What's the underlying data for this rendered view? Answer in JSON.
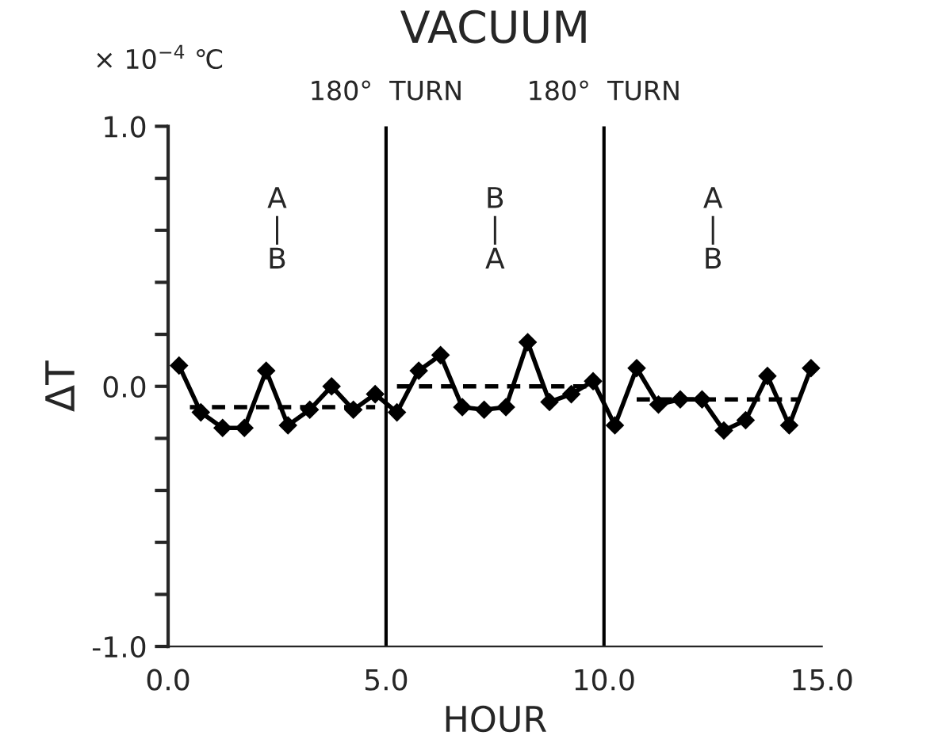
{
  "chart_data": {
    "type": "line",
    "title": "VACUUM",
    "xlabel": "HOUR",
    "ylabel": "ΔT",
    "x": [
      0.25,
      0.75,
      1.25,
      1.75,
      2.25,
      2.75,
      3.25,
      3.75,
      4.25,
      4.75,
      5.25,
      5.75,
      6.25,
      6.75,
      7.25,
      7.75,
      8.25,
      8.75,
      9.25,
      9.75,
      10.25,
      10.75,
      11.25,
      11.75,
      12.25,
      12.75,
      13.25,
      13.75,
      14.25,
      14.75
    ],
    "series": [
      {
        "color": "#000000",
        "marker": "diamond",
        "line_style": "solid",
        "values": [
          0.08,
          -0.1,
          -0.16,
          -0.16,
          0.06,
          -0.15,
          -0.09,
          0.0,
          -0.09,
          -0.03,
          -0.1,
          0.06,
          0.12,
          -0.08,
          -0.09,
          -0.08,
          0.17,
          -0.06,
          -0.03,
          0.02,
          -0.15,
          0.07,
          -0.07,
          -0.05,
          -0.05,
          -0.17,
          -0.13,
          0.04,
          -0.15,
          0.07
        ]
      },
      {
        "color": "#000000",
        "marker": "none",
        "line_style": "dashed",
        "x": [
          0.5,
          4.75
        ],
        "values": [
          -0.08,
          -0.08
        ]
      },
      {
        "color": "#000000",
        "marker": "none",
        "line_style": "dashed",
        "x": [
          5.25,
          9.75
        ],
        "values": [
          0.0,
          0.0
        ]
      },
      {
        "color": "#000000",
        "marker": "none",
        "line_style": "dashed",
        "x": [
          10.75,
          14.5
        ],
        "values": [
          -0.05,
          -0.05
        ]
      }
    ],
    "xlim": [
      0,
      15
    ],
    "xticks": [
      {
        "value": 0,
        "label": "0.0"
      },
      {
        "value": 5,
        "label": "5.0"
      },
      {
        "value": 10,
        "label": "10.0"
      },
      {
        "value": 15,
        "label": "15.0"
      }
    ],
    "ylim": [
      -1.0,
      1.0
    ],
    "yticks": [
      {
        "value": -1.0,
        "label": "-1.0"
      },
      {
        "value": -0.8,
        "label": null
      },
      {
        "value": -0.6,
        "label": null
      },
      {
        "value": -0.4,
        "label": null
      },
      {
        "value": -0.2,
        "label": null
      },
      {
        "value": 0.0,
        "label": "0.0"
      },
      {
        "value": 0.2,
        "label": null
      },
      {
        "value": 0.4,
        "label": null
      },
      {
        "value": 0.6,
        "label": null
      },
      {
        "value": 0.8,
        "label": null
      },
      {
        "value": 1.0,
        "label": "1.0"
      }
    ],
    "ref_lines": [
      {
        "axis": "x",
        "value": 5,
        "label": "180°  TURN",
        "color": "#000000",
        "line_style": "solid"
      },
      {
        "axis": "x",
        "value": 10,
        "label": "180°  TURN",
        "color": "#000000",
        "line_style": "solid"
      }
    ],
    "annotations": [
      "× 10$^{−4}$ ℃",
      "A\n|\nB",
      "B\n|\nA",
      "A\n|\nB"
    ],
    "grid": false,
    "legend": false
  }
}
